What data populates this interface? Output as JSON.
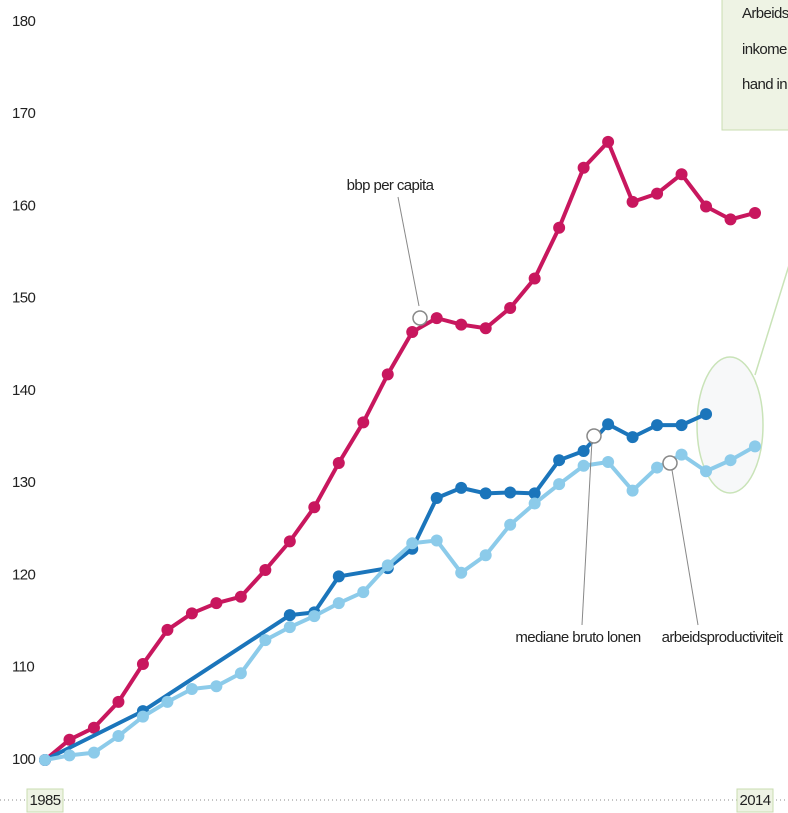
{
  "chart_data": {
    "type": "line",
    "xlim": [
      1985,
      2014
    ],
    "xticks": [
      1985,
      2014
    ],
    "ylim": [
      100,
      180
    ],
    "yticks": [
      100,
      110,
      120,
      130,
      140,
      150,
      160,
      170,
      180
    ],
    "series": [
      {
        "name": "bbp per capita",
        "color": "#c8175e",
        "x": [
          1985,
          1986,
          1987,
          1988,
          1989,
          1990,
          1991,
          1992,
          1993,
          1994,
          1995,
          1996,
          1997,
          1998,
          1999,
          2000,
          2001,
          2002,
          2003,
          2004,
          2005,
          2006,
          2007,
          2008,
          2009,
          2010,
          2011,
          2012,
          2013,
          2014
        ],
        "values": [
          100,
          102.2,
          103.5,
          106.3,
          110.4,
          114.1,
          115.9,
          117,
          117.7,
          120.6,
          123.7,
          127.4,
          132.2,
          136.6,
          141.8,
          146.4,
          147.9,
          147.2,
          146.8,
          149,
          152.2,
          157.7,
          164.2,
          167,
          160.5,
          161.4,
          163.5,
          160,
          158.6,
          159.3
        ]
      },
      {
        "name": "mediane bruto lonen",
        "color": "#1b75bb",
        "x": [
          1985,
          1989,
          1995,
          1996,
          1997,
          1999,
          2000,
          2001,
          2002,
          2003,
          2004,
          2005,
          2006,
          2007,
          2008,
          2009,
          2010,
          2011,
          2012
        ],
        "values": [
          100,
          105.3,
          115.7,
          116,
          119.9,
          120.8,
          122.9,
          128.4,
          129.5,
          128.9,
          129,
          128.9,
          132.5,
          133.5,
          136.4,
          135,
          136.3,
          136.3,
          137.5
        ]
      },
      {
        "name": "arbeidsproductiviteit",
        "color": "#8ccbea",
        "x": [
          1985,
          1986,
          1987,
          1988,
          1989,
          1990,
          1991,
          1992,
          1993,
          1994,
          1995,
          1996,
          1997,
          1998,
          1999,
          2000,
          2001,
          2002,
          2003,
          2004,
          2005,
          2006,
          2007,
          2008,
          2009,
          2010,
          2011,
          2012,
          2013,
          2014
        ],
        "values": [
          100,
          100.5,
          100.8,
          102.6,
          104.7,
          106.3,
          107.7,
          108,
          109.4,
          113,
          114.4,
          115.6,
          117,
          118.2,
          121.1,
          123.5,
          123.8,
          120.3,
          122.2,
          125.5,
          127.8,
          129.9,
          131.9,
          132.3,
          129.2,
          131.7,
          133.1,
          131.3,
          132.5,
          134
        ]
      }
    ],
    "annotations": [
      "Arbeids",
      "inkome",
      "hand in"
    ]
  }
}
